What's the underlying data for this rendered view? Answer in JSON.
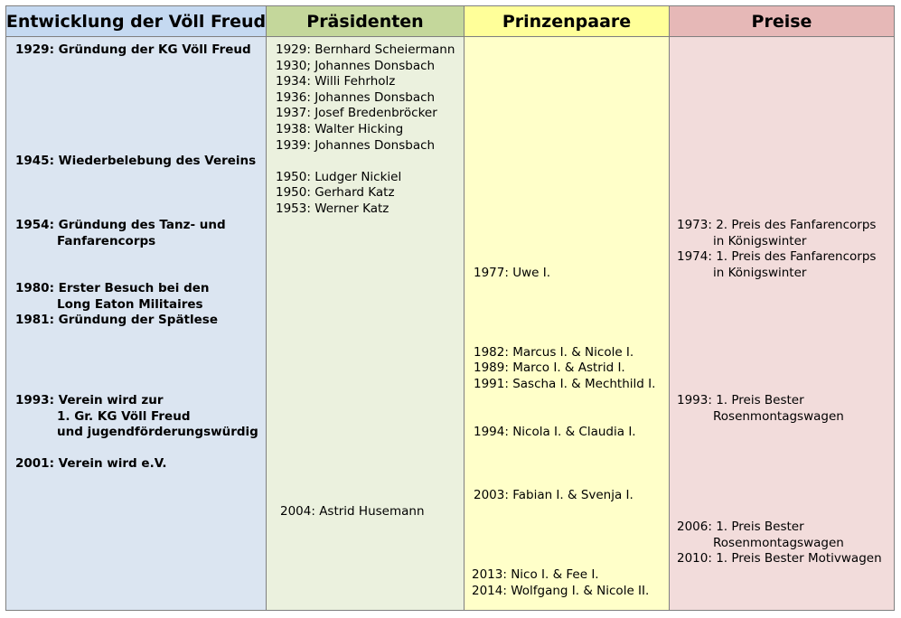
{
  "columns": {
    "entwicklung": {
      "title": "Entwicklung der Völl Freud",
      "entries": [
        {
          "lines": [
            "1929: Gründung der KG Völl Freud"
          ]
        },
        {
          "lines": [
            "1945: Wiederbelebung des Vereins"
          ]
        },
        {
          "lines": [
            "1954: Gründung des Tanz- und",
            "Fanfarencorps"
          ]
        },
        {
          "lines": [
            "1980: Erster Besuch bei den",
            "Long Eaton Militaires"
          ]
        },
        {
          "lines": [
            "1981: Gründung der Spätlese"
          ]
        },
        {
          "lines": [
            "1993: Verein wird zur",
            "1. Gr. KG Völl Freud",
            "und jugendförderungswürdig"
          ]
        },
        {
          "lines": [
            "2001: Verein wird e.V."
          ]
        }
      ]
    },
    "praesidenten": {
      "title": "Präsidenten",
      "entries": [
        {
          "lines": [
            "1929: Bernhard Scheiermann"
          ]
        },
        {
          "lines": [
            "1930; Johannes Donsbach"
          ]
        },
        {
          "lines": [
            "1934: Willi Fehrholz"
          ]
        },
        {
          "lines": [
            "1936: Johannes Donsbach"
          ]
        },
        {
          "lines": [
            "1937: Josef Bredenbröcker"
          ]
        },
        {
          "lines": [
            "1938: Walter Hicking"
          ]
        },
        {
          "lines": [
            "1939: Johannes Donsbach"
          ]
        },
        {
          "lines": [
            "1950: Ludger Nickiel"
          ]
        },
        {
          "lines": [
            "1950: Gerhard Katz"
          ]
        },
        {
          "lines": [
            "1953: Werner Katz"
          ]
        },
        {
          "lines": [
            "2004: Astrid Husemann"
          ]
        }
      ]
    },
    "prinzenpaare": {
      "title": "Prinzenpaare",
      "entries": [
        {
          "lines": [
            "1977: Uwe I."
          ]
        },
        {
          "lines": [
            "1982: Marcus I. & Nicole I."
          ]
        },
        {
          "lines": [
            "1989: Marco I. & Astrid I."
          ]
        },
        {
          "lines": [
            "1991: Sascha I. & Mechthild I."
          ]
        },
        {
          "lines": [
            "1994: Nicola I. & Claudia I."
          ]
        },
        {
          "lines": [
            "2003: Fabian I. & Svenja  I."
          ]
        },
        {
          "lines": [
            "2013: Nico I. & Fee I."
          ]
        },
        {
          "lines": [
            "2014: Wolfgang I. & Nicole II."
          ]
        }
      ]
    },
    "preise": {
      "title": "Preise",
      "entries": [
        {
          "lines": [
            "1973: 2. Preis des Fanfarencorps",
            "in Königswinter"
          ]
        },
        {
          "lines": [
            "1974: 1. Preis des Fanfarencorps",
            "in Königswinter"
          ]
        },
        {
          "lines": [
            "1993: 1. Preis Bester",
            "Rosenmontagswagen"
          ]
        },
        {
          "lines": [
            "2006: 1. Preis Bester",
            "Rosenmontagswagen"
          ]
        },
        {
          "lines": [
            "2010: 1. Preis Bester Motivwagen"
          ]
        }
      ]
    }
  }
}
